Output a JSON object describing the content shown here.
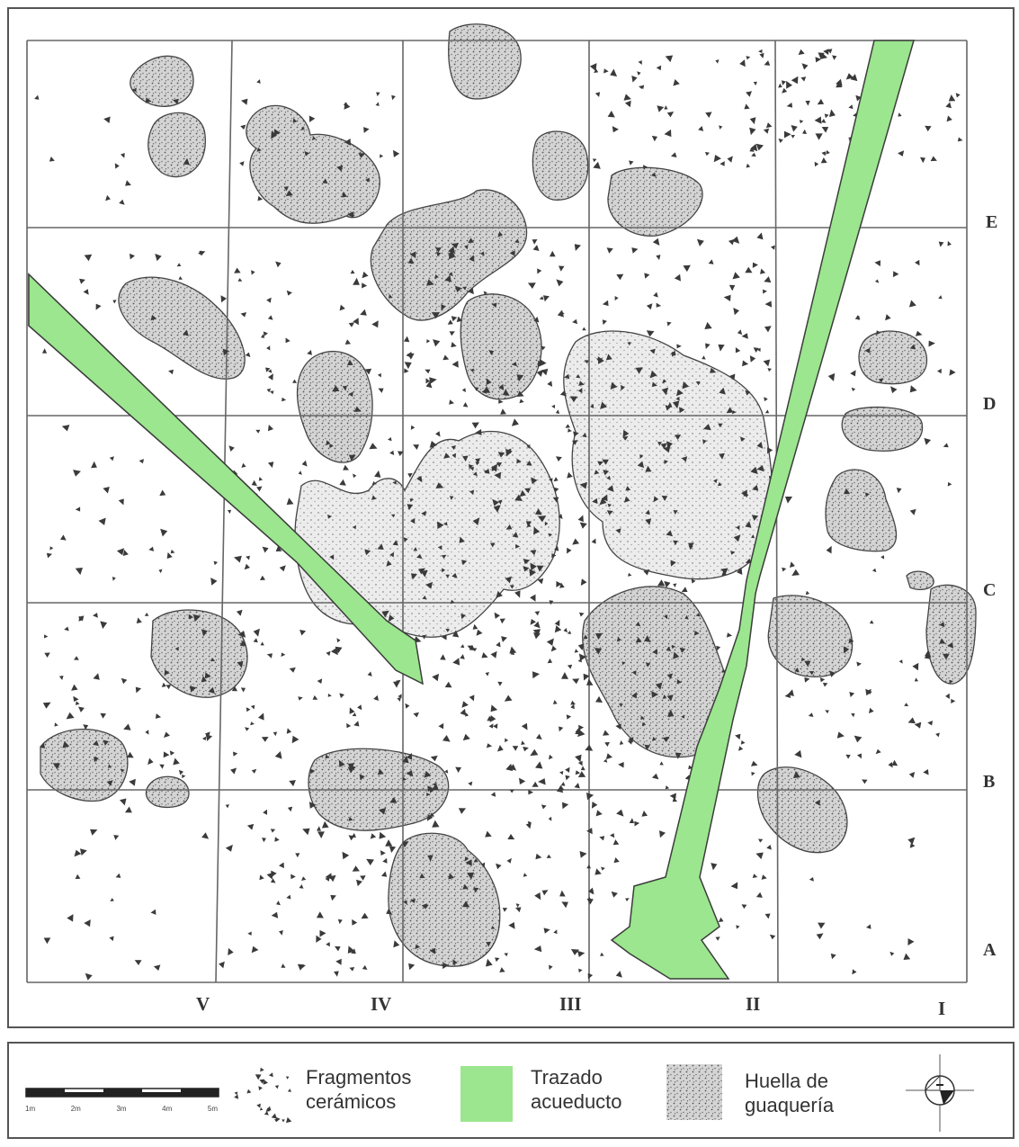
{
  "map": {
    "row_labels": [
      "E",
      "D",
      "C",
      "B",
      "A"
    ],
    "column_labels": [
      "V",
      "IV",
      "III",
      "II",
      "I"
    ],
    "colors": {
      "acueducto": "#9BE68E",
      "acueducto_stroke": "#3c3c3c",
      "grid": "#666666",
      "guaqueria_fill": "#c9c9c9",
      "fragment": "#3a3a3a"
    }
  },
  "legend": {
    "scale_ticks": [
      "1m",
      "2m",
      "3m",
      "4m",
      "5m"
    ],
    "items": [
      {
        "icon": "ceramic-fragments-swatch",
        "line1": "Fragmentos",
        "line2": "cerámicos"
      },
      {
        "icon": "aqueduct-swatch",
        "line1": "Trazado",
        "line2": "acueducto"
      },
      {
        "icon": "looting-pattern-swatch",
        "line1": "Huella de",
        "line2": "guaquería"
      }
    ],
    "north_arrow_icon": "north-arrow-icon"
  }
}
